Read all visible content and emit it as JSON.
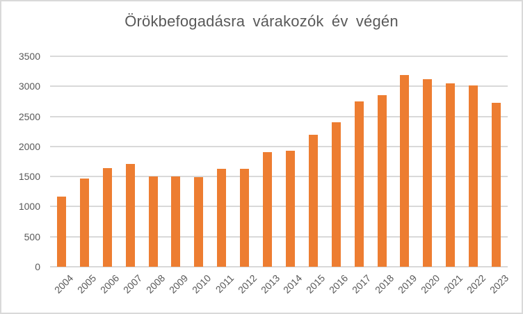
{
  "window": {
    "background": "#ffffff",
    "border_color": "#d9d9d9"
  },
  "chart_data": {
    "type": "bar",
    "title": "Örökbefogadásra várakozók év végén",
    "categories": [
      "2004",
      "2005",
      "2006",
      "2007",
      "2008",
      "2009",
      "2010",
      "2011",
      "2012",
      "2013",
      "2014",
      "2015",
      "2016",
      "2017",
      "2018",
      "2019",
      "2020",
      "2021",
      "2022",
      "2023"
    ],
    "values": [
      1170,
      1465,
      1645,
      1705,
      1500,
      1500,
      1490,
      1625,
      1625,
      1910,
      1925,
      2200,
      2405,
      2750,
      2855,
      3185,
      3115,
      3045,
      3010,
      2730
    ],
    "xlabel": "",
    "ylabel": "",
    "ylim": [
      0,
      3500
    ],
    "yticks": [
      0,
      500,
      1000,
      1500,
      2000,
      2500,
      3000,
      3500
    ],
    "grid": true,
    "legend": false,
    "bar_color": "#ed7d31",
    "text_color": "#595959",
    "gridline_color": "#d9d9d9"
  }
}
